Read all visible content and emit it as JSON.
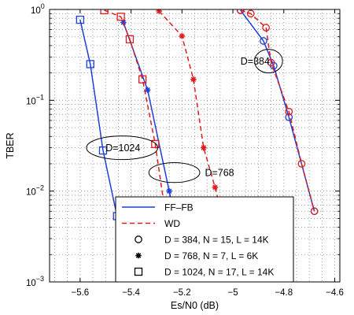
{
  "chart_data": {
    "type": "line",
    "xlabel": "Es/N0 (dB)",
    "ylabel": "TBER",
    "xlim": [
      -5.72,
      -4.58
    ],
    "ylim_log10": [
      -3,
      0
    ],
    "y_scale": "log",
    "grid": true,
    "x_ticks": [
      -5.6,
      -5.4,
      -5.2,
      -5.0,
      -4.8,
      -4.6
    ],
    "x_tick_labels": [
      "−5.6",
      "−5.4",
      "−5.2",
      "−5",
      "−4.8",
      "−4.6"
    ],
    "y_ticks": [
      1,
      0.1,
      0.01,
      0.001
    ],
    "y_tick_bases": [
      "10",
      "10",
      "10",
      "10"
    ],
    "y_tick_exps": [
      "0",
      "−1",
      "−2",
      "−3"
    ],
    "colors": {
      "ff_fb": "#1f3fd8",
      "wd": "#e01b1b"
    },
    "series": [
      {
        "name": "FF–FB",
        "group": "D=384",
        "style": "ff_fb",
        "marker": "circle",
        "x": [
          -4.97,
          -4.88,
          -4.84,
          -4.78,
          -4.68
        ],
        "y": [
          0.98,
          0.45,
          0.24,
          0.065,
          0.006
        ]
      },
      {
        "name": "WD",
        "group": "D=384",
        "style": "wd",
        "marker": "circle",
        "x": [
          -4.97,
          -4.93,
          -4.87,
          -4.85,
          -4.78,
          -4.73,
          -4.68
        ],
        "y": [
          0.98,
          0.9,
          0.63,
          0.26,
          0.075,
          0.02,
          0.006
        ]
      },
      {
        "name": "FF–FB",
        "group": "D=768",
        "style": "ff_fb",
        "marker": "star",
        "x": [
          -5.43,
          -5.335,
          -5.25,
          -5.185
        ],
        "y": [
          0.72,
          0.13,
          0.01,
          0.0013
        ]
      },
      {
        "name": "WD",
        "group": "D=768",
        "style": "wd",
        "marker": "star",
        "x": [
          -5.29,
          -5.2,
          -5.155,
          -5.115,
          -5.07,
          -5.04
        ],
        "y": [
          0.96,
          0.51,
          0.17,
          0.03,
          0.011,
          0.005
        ]
      },
      {
        "name": "FF–FB",
        "group": "D=1024",
        "style": "ff_fb",
        "marker": "square",
        "x": [
          -5.6,
          -5.56,
          -5.51,
          -5.455
        ],
        "y": [
          0.77,
          0.25,
          0.028,
          0.0053
        ]
      },
      {
        "name": "WD",
        "group": "D=1024",
        "style": "wd",
        "marker": "square",
        "x": [
          -5.505,
          -5.44,
          -5.405,
          -5.355,
          -5.305,
          -5.27
        ],
        "y": [
          0.98,
          0.83,
          0.47,
          0.17,
          0.033,
          0.007
        ]
      }
    ],
    "annotations": [
      {
        "label": "D=384",
        "x": -4.86,
        "y": 0.27,
        "ex": 0.055,
        "ey_log": 0.13,
        "text_x": -4.97
      },
      {
        "label": "D=768",
        "x": -5.23,
        "y": 0.016,
        "ex": 0.1,
        "ey_log": 0.11,
        "text_x": -5.11
      },
      {
        "label": "D=1024",
        "x": -5.435,
        "y": 0.03,
        "ex": 0.14,
        "ey_log": 0.13,
        "text_x": -5.5
      }
    ],
    "legend": {
      "placement": "bottom-center",
      "entries": [
        {
          "label": "FF–FB",
          "line": "ff_fb"
        },
        {
          "label": "WD",
          "line": "wd"
        },
        {
          "label": "D = 384,   N = 15,  L = 14K",
          "marker": "circle"
        },
        {
          "label": "D = 768,   N = 7,    L = 6K",
          "marker": "star"
        },
        {
          "label": "D = 1024, N = 17,  L = 14K",
          "marker": "square"
        }
      ]
    }
  }
}
